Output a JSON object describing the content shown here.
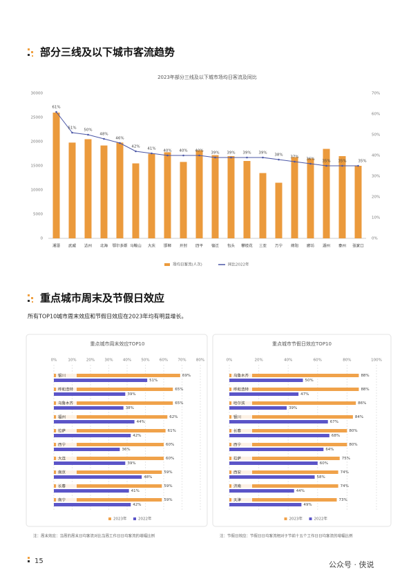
{
  "sections": [
    {
      "heading": "部分三线及以下城市客流趋势"
    },
    {
      "heading": "重点城市周末及节假日效应",
      "subtitle": "所有TOP10城市周末效应和节假日效应在2023年均有明显增长。"
    }
  ],
  "chart_data": [
    {
      "type": "bar",
      "title": "2023年部分三线及以下城市场均日客流及同比",
      "categories": [
        "湘潭",
        "武威",
        "达州",
        "北海",
        "鄂尔多斯",
        "马鞍山",
        "大庆",
        "邯郸",
        "开封",
        "四平",
        "宿迁",
        "包头",
        "攀枝花",
        "三亚",
        "万宁",
        "绵阳",
        "廊坊",
        "湖州",
        "泰州",
        "张家口"
      ],
      "series": [
        {
          "name": "场均日客流(人次)",
          "color": "#eb9a3c",
          "values": [
            26000,
            19800,
            20500,
            19200,
            19800,
            15500,
            17500,
            17800,
            15800,
            18200,
            17200,
            17000,
            16000,
            13500,
            11500,
            16800,
            16500,
            18500,
            17000,
            15000
          ]
        },
        {
          "name": "同比2022年",
          "type": "line",
          "axis": "y2",
          "color": "#4a56a6",
          "values": [
            61,
            51,
            50,
            48,
            46,
            42,
            41,
            40,
            40,
            40,
            39,
            39,
            39,
            39,
            38,
            37,
            36,
            35,
            35,
            35
          ],
          "value_labels": [
            "61%",
            "51%",
            "50%",
            "48%",
            "46%",
            "42%",
            "41%",
            "40%",
            "40%",
            "40%",
            "39%",
            "39%",
            "39%",
            "39%",
            "38%",
            "37%",
            "36%",
            "35%",
            "35%",
            "35%"
          ]
        }
      ],
      "ylim": [
        0,
        30000
      ],
      "yticks": [
        0,
        5000,
        10000,
        15000,
        20000,
        25000,
        30000
      ],
      "y2lim": [
        0,
        70
      ],
      "y2ticks": [
        {
          "value": 0,
          "label": "0%"
        },
        {
          "value": 10,
          "label": "10%"
        },
        {
          "value": 20,
          "label": "20%"
        },
        {
          "value": 30,
          "label": "30%"
        },
        {
          "value": 40,
          "label": "40%"
        },
        {
          "value": 50,
          "label": "50%"
        },
        {
          "value": 60,
          "label": "60%"
        },
        {
          "value": 70,
          "label": "70%"
        }
      ],
      "grid": false
    },
    {
      "type": "bar",
      "orientation": "horizontal",
      "title": "重点城市周末效应TOP10",
      "categories": [
        "银川",
        "呼和浩特",
        "乌鲁木齐",
        "福州",
        "拉萨",
        "西宁",
        "大连",
        "南京",
        "长春",
        "南宁"
      ],
      "series": [
        {
          "name": "2023年",
          "color": "#f0a24a",
          "values": [
            69,
            65,
            65,
            62,
            61,
            60,
            60,
            59,
            59,
            59
          ],
          "value_labels": [
            "69%",
            "65%",
            "65%",
            "62%",
            "61%",
            "60%",
            "60%",
            "59%",
            "59%",
            "59%"
          ]
        },
        {
          "name": "2022年",
          "color": "#5b55c8",
          "values": [
            51,
            39,
            38,
            44,
            42,
            36,
            39,
            48,
            41,
            42
          ],
          "value_labels": [
            "51%",
            "39%",
            "38%",
            "44%",
            "42%",
            "36%",
            "39%",
            "48%",
            "41%",
            "42%"
          ]
        }
      ],
      "xlim": [
        0,
        80
      ],
      "xticks": [
        {
          "value": 0,
          "label": "0%"
        },
        {
          "value": 10,
          "label": "10%"
        },
        {
          "value": 20,
          "label": "20%"
        },
        {
          "value": 30,
          "label": "30%"
        },
        {
          "value": 40,
          "label": "40%"
        },
        {
          "value": 50,
          "label": "50%"
        },
        {
          "value": 60,
          "label": "60%"
        },
        {
          "value": 70,
          "label": "70%"
        },
        {
          "value": 80,
          "label": "80%"
        }
      ],
      "grid": true
    },
    {
      "type": "bar",
      "orientation": "horizontal",
      "title": "重点城市节假日效应TOP10",
      "categories": [
        "乌鲁木齐",
        "呼和浩特",
        "哈尔滨",
        "银川",
        "长春",
        "西宁",
        "拉萨",
        "西安",
        "济南",
        "天津"
      ],
      "series": [
        {
          "name": "2023年",
          "color": "#f0a24a",
          "values": [
            88,
            88,
            86,
            84,
            80,
            80,
            75,
            74,
            74,
            73
          ],
          "value_labels": [
            "88%",
            "88%",
            "86%",
            "84%",
            "80%",
            "80%",
            "75%",
            "74%",
            "74%",
            "73%"
          ]
        },
        {
          "name": "2022年",
          "color": "#5b55c8",
          "values": [
            50,
            47,
            39,
            67,
            68,
            64,
            60,
            58,
            44,
            49
          ],
          "value_labels": [
            "50%",
            "47%",
            "39%",
            "67%",
            "68%",
            "64%",
            "60%",
            "58%",
            "44%",
            "49%"
          ]
        }
      ],
      "xlim": [
        0,
        100
      ],
      "xticks": [
        {
          "value": 0,
          "label": "0%"
        },
        {
          "value": 20,
          "label": "20%"
        },
        {
          "value": 40,
          "label": "40%"
        },
        {
          "value": 60,
          "label": "60%"
        },
        {
          "value": 80,
          "label": "80%"
        },
        {
          "value": 100,
          "label": "100%"
        }
      ],
      "grid": true
    }
  ],
  "notes": [
    "注：周末效应：当周的周末日均客流对比当周工作日日均客流的增幅比例",
    "注：节假日效应：节假日日均客流相对于节前十五个工作日日均客流的增幅比例"
  ],
  "footer": {
    "page": 15,
    "watermark": "公众号 · 侠说"
  }
}
